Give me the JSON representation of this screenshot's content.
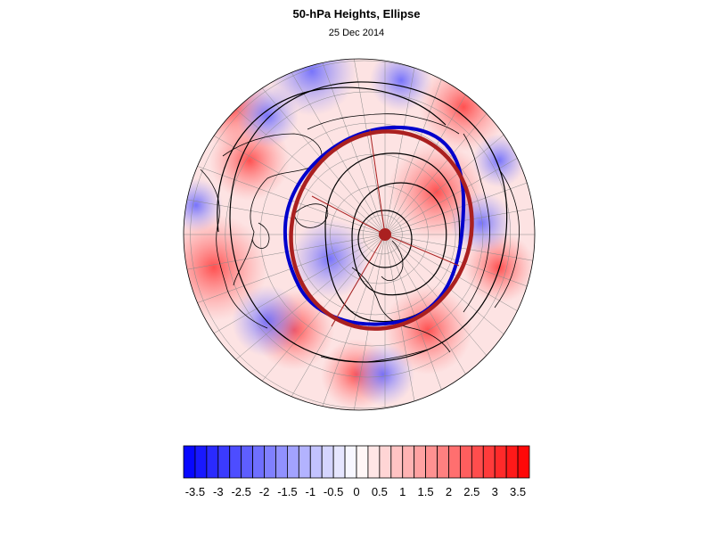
{
  "title": "50-hPa Heights, Ellipse",
  "subtitle": "25 Dec 2014",
  "map": {
    "projection": "polar",
    "field_colors": {
      "negative": "#0000ff",
      "positive": "#ff0000",
      "neutral": "#ffffff"
    },
    "ellipse_colors": {
      "observed": "#0000cc",
      "fitted": "#aa2020"
    },
    "contour_color": "#000000"
  },
  "colorbar": {
    "labels": [
      "-3.5",
      "-3",
      "-2.5",
      "-2",
      "-1.5",
      "-1",
      "-0.5",
      "0",
      "0.5",
      "1",
      "1.5",
      "2",
      "2.5",
      "3",
      "3.5"
    ],
    "values": [
      -3.5,
      -3,
      -2.5,
      -2,
      -1.5,
      -1,
      -0.5,
      0,
      0.5,
      1,
      1.5,
      2,
      2.5,
      3,
      3.5
    ],
    "min": -3.75,
    "max": 3.75,
    "step": 0.25
  }
}
